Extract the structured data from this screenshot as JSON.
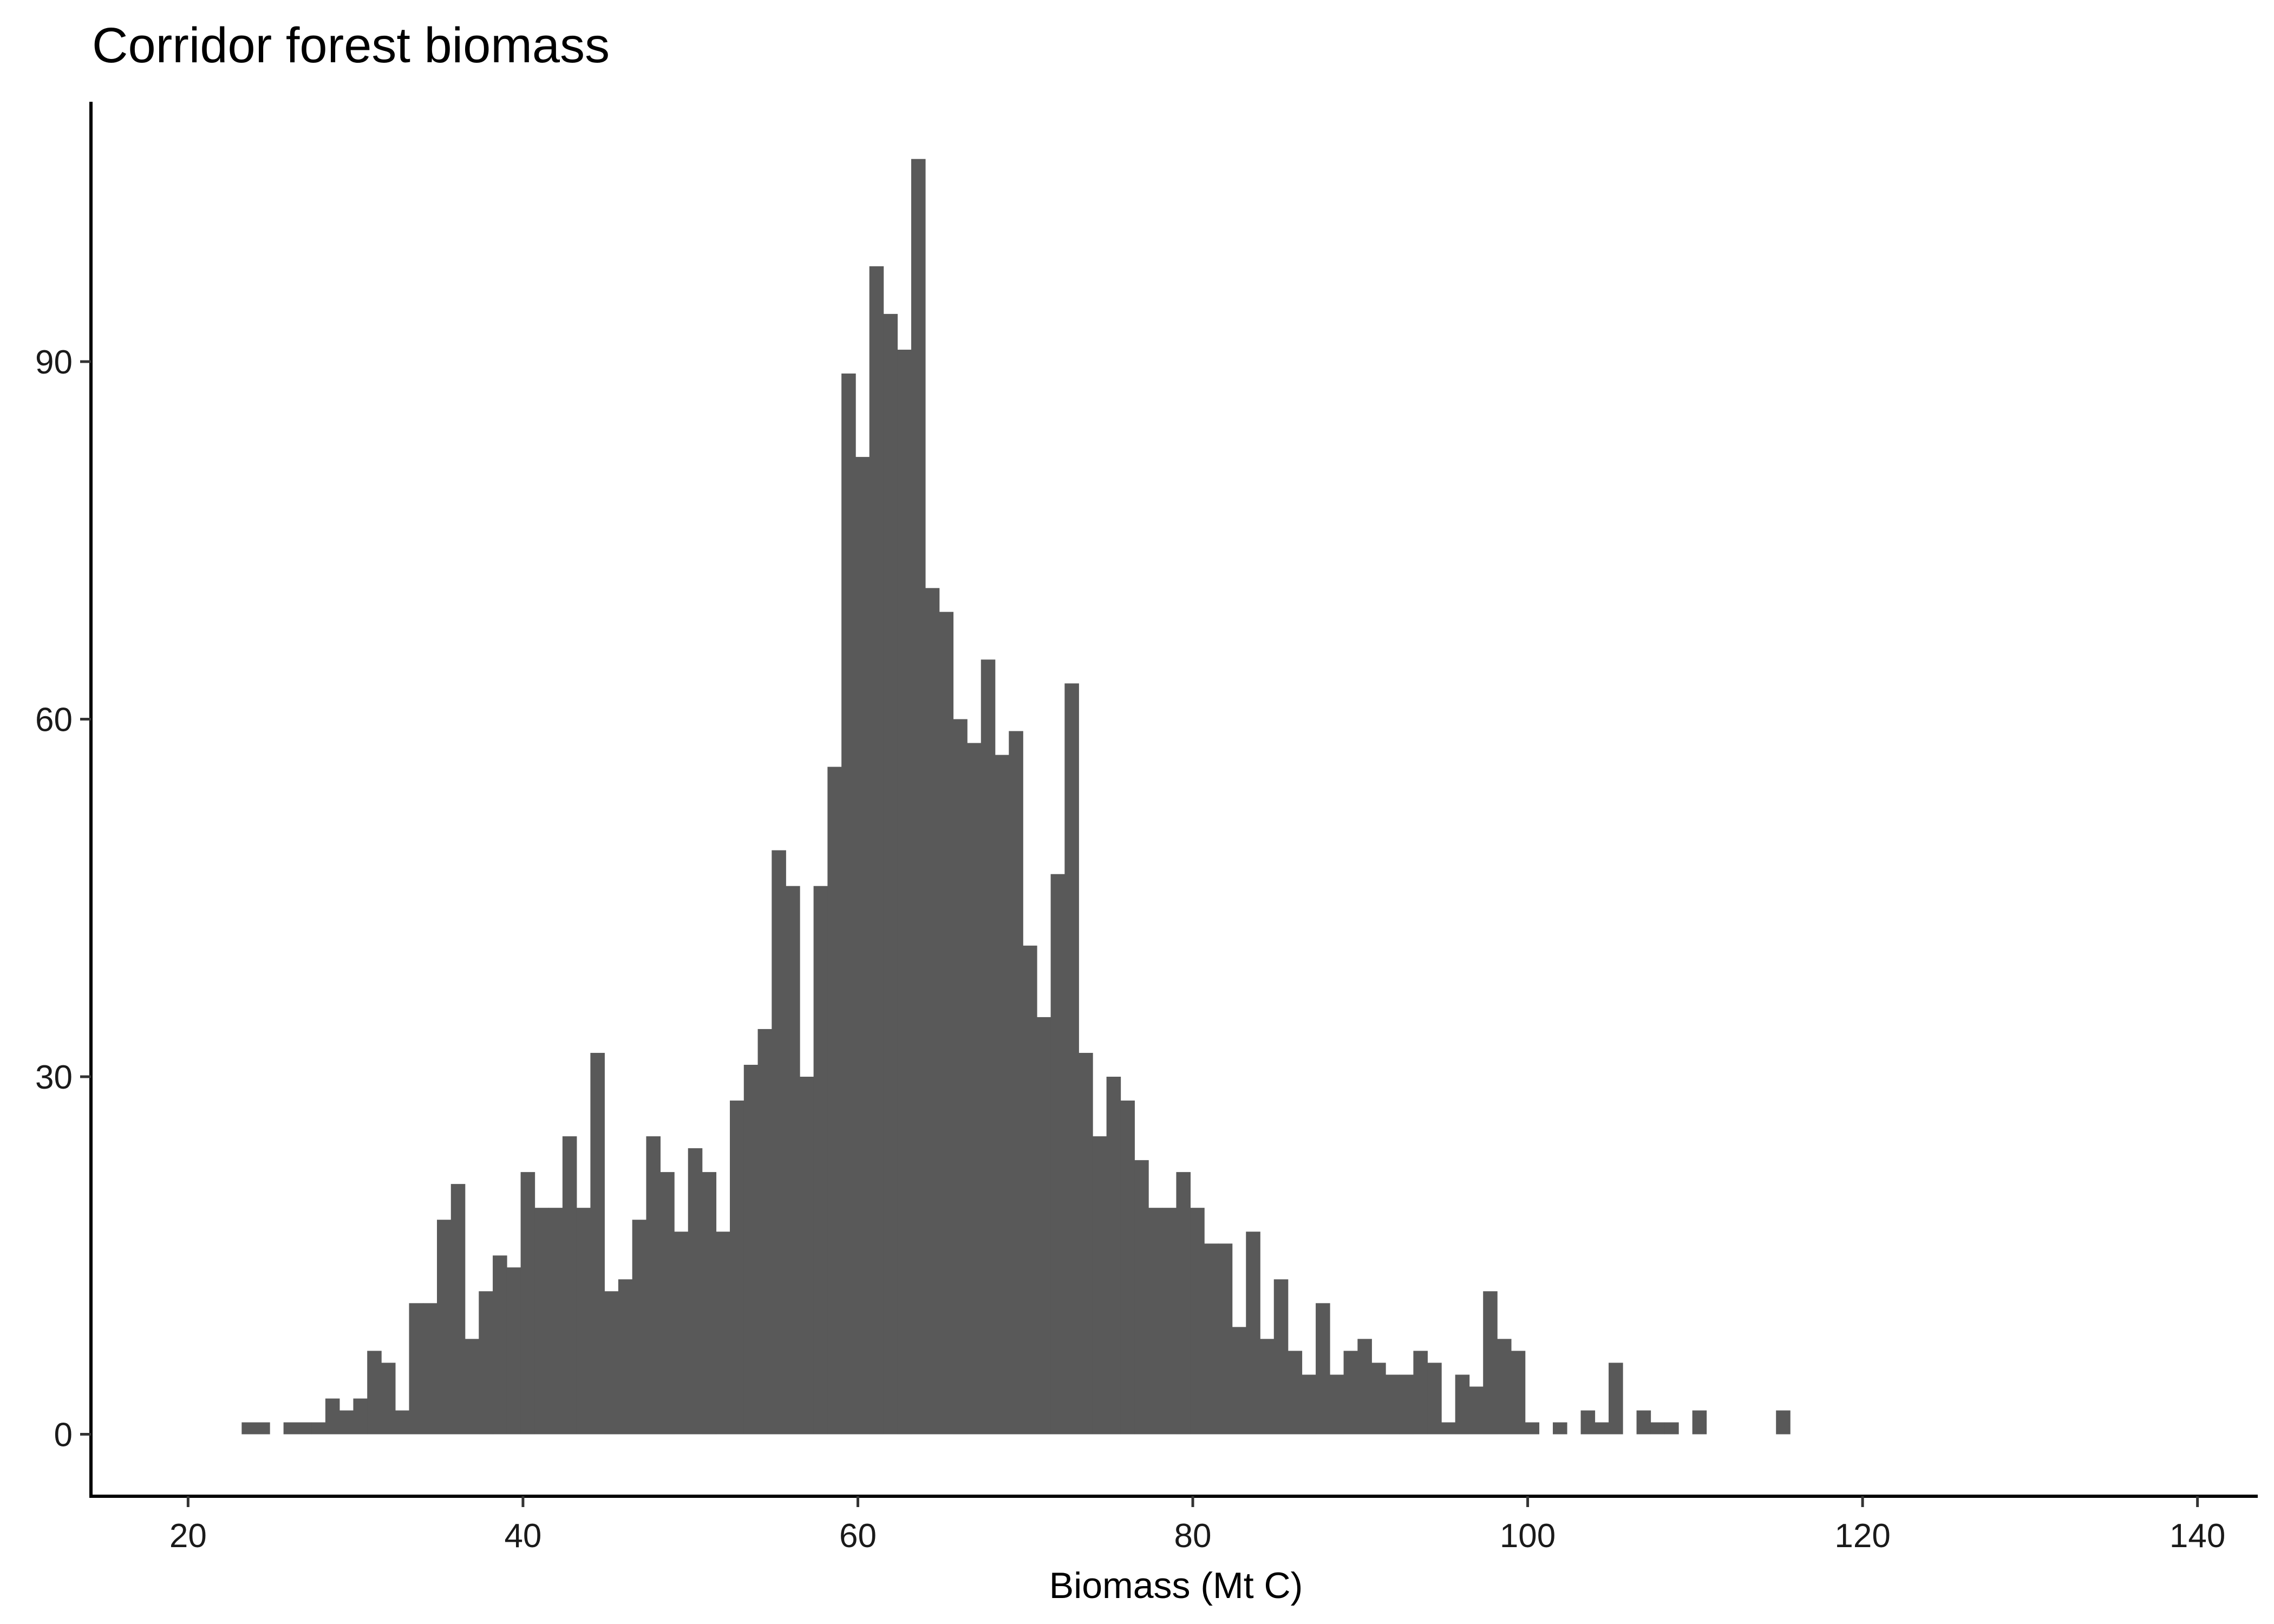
{
  "chart_data": {
    "type": "histogram",
    "title": "Corridor forest biomass",
    "xlabel": "Biomass (Mt C)",
    "ylabel": "",
    "bin_width": 0.833,
    "bin_start": 23.2,
    "counts": [
      1,
      1,
      0,
      1,
      1,
      1,
      3,
      2,
      3,
      7,
      6,
      2,
      11,
      11,
      18,
      21,
      8,
      12,
      15,
      14,
      22,
      19,
      19,
      25,
      19,
      32,
      12,
      13,
      18,
      25,
      22,
      17,
      24,
      22,
      17,
      28,
      31,
      34,
      49,
      46,
      30,
      46,
      56,
      89,
      82,
      98,
      94,
      91,
      107,
      71,
      69,
      60,
      58,
      65,
      57,
      59,
      41,
      35,
      47,
      63,
      32,
      25,
      30,
      28,
      23,
      19,
      19,
      22,
      19,
      16,
      16,
      9,
      17,
      8,
      13,
      7,
      5,
      11,
      5,
      7,
      8,
      6,
      5,
      5,
      7,
      6,
      1,
      5,
      4,
      12,
      8,
      7,
      1,
      0,
      1,
      0,
      2,
      1,
      6,
      0,
      2,
      1,
      1,
      0,
      2,
      0,
      0,
      0,
      0,
      0,
      2
    ],
    "bar_color": "#595959",
    "xlim": [
      14.2,
      143.6
    ],
    "ylim": [
      -5.2,
      111.8
    ],
    "x_ticks": [
      "20",
      "40",
      "60",
      "80",
      "100",
      "120",
      "140"
    ],
    "y_ticks": [
      "0",
      "30",
      "60",
      "90"
    ],
    "grid": false,
    "legend": "none"
  }
}
